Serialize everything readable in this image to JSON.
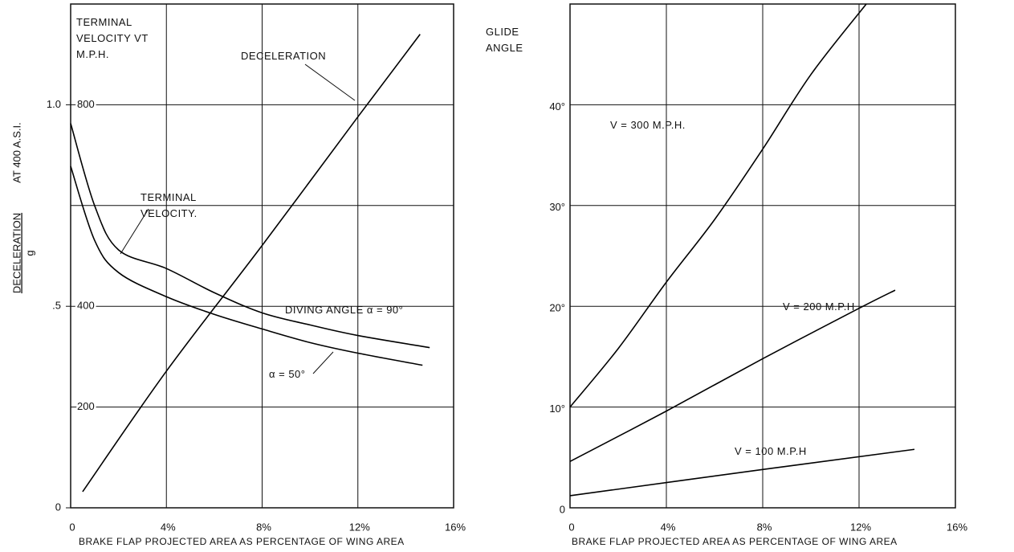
{
  "chart_data": [
    {
      "type": "line",
      "x_label": "BRAKE FLAP PROJECTED AREA AS PERCENTAGE OF WING AREA",
      "y_label": "TERMINAL VELOCITY VT M.P.H.",
      "y2_label": "DECELERATION",
      "y2_label_denominator": "g",
      "y2_label_note": "AT 400 A.S.I.",
      "annotations": [
        "TERMINAL VELOCITY."
      ],
      "xlim": [
        0,
        16
      ],
      "xticks": [
        0,
        {
          "value": 4,
          "label": "4%"
        },
        {
          "value": 8,
          "label": "8%"
        },
        {
          "value": 12,
          "label": "12%"
        },
        {
          "value": 16,
          "label": "16%"
        }
      ],
      "ylim": [
        0,
        1000
      ],
      "yticks": [
        200,
        400,
        {
          "value": 600,
          "label": null
        },
        800
      ],
      "y2lim": [
        0,
        1.25
      ],
      "y2ticks": [
        0,
        {
          "value": 0.5,
          "label": ".5"
        },
        {
          "value": 1,
          "label": "1.0"
        }
      ],
      "grid": true,
      "series": [
        {
          "name": "DECELERATION",
          "color": "#000000",
          "axis": "y2",
          "x": [
            0.5,
            4,
            8,
            12,
            14.6
          ],
          "values": [
            0.04,
            0.339,
            0.651,
            0.97,
            1.175
          ]
        },
        {
          "name": "DIVING ANGLE α = 90°",
          "color": "#000000",
          "x": [
            0,
            1,
            2,
            4,
            6,
            8,
            10,
            12,
            15
          ],
          "values": [
            763,
            600,
            512,
            475,
            427,
            387,
            363,
            342,
            318
          ]
        },
        {
          "name": "α = 50°",
          "color": "#000000",
          "x": [
            0,
            1,
            2,
            4,
            6,
            8,
            10,
            12,
            14.7
          ],
          "values": [
            678,
            531,
            467,
            419,
            384,
            355,
            328,
            307,
            283
          ]
        }
      ]
    },
    {
      "type": "line",
      "x_label": "BRAKE FLAP PROJECTED AREA AS PERCENTAGE OF WING AREA",
      "y_label": "GLIDE ANGLE",
      "xlim": [
        0,
        16
      ],
      "xticks": [
        0,
        {
          "value": 4,
          "label": "4%"
        },
        {
          "value": 8,
          "label": "8%"
        },
        {
          "value": 12,
          "label": "12%"
        },
        {
          "value": 16,
          "label": "16%"
        }
      ],
      "ylim": [
        0,
        50
      ],
      "yticks": [
        0,
        {
          "value": 10,
          "label": "10°"
        },
        {
          "value": 20,
          "label": "20°"
        },
        {
          "value": 30,
          "label": "30°"
        },
        {
          "value": 40,
          "label": "40°"
        }
      ],
      "grid": true,
      "series": [
        {
          "name": "V = 300 M.P.H.",
          "color": "#000000",
          "x": [
            0,
            2,
            4,
            6,
            8,
            10,
            12.3
          ],
          "values": [
            10,
            15.8,
            22.4,
            28.6,
            35.6,
            43,
            50
          ]
        },
        {
          "name": "V = 200 M.P.H",
          "color": "#000000",
          "x": [
            0,
            4,
            8,
            12,
            13.5
          ],
          "values": [
            4.6,
            9.6,
            14.8,
            19.8,
            21.6
          ]
        },
        {
          "name": "V = 100 M.P.H",
          "color": "#000000",
          "x": [
            0,
            8,
            14.3
          ],
          "values": [
            1.2,
            3.8,
            5.8
          ]
        }
      ]
    }
  ]
}
